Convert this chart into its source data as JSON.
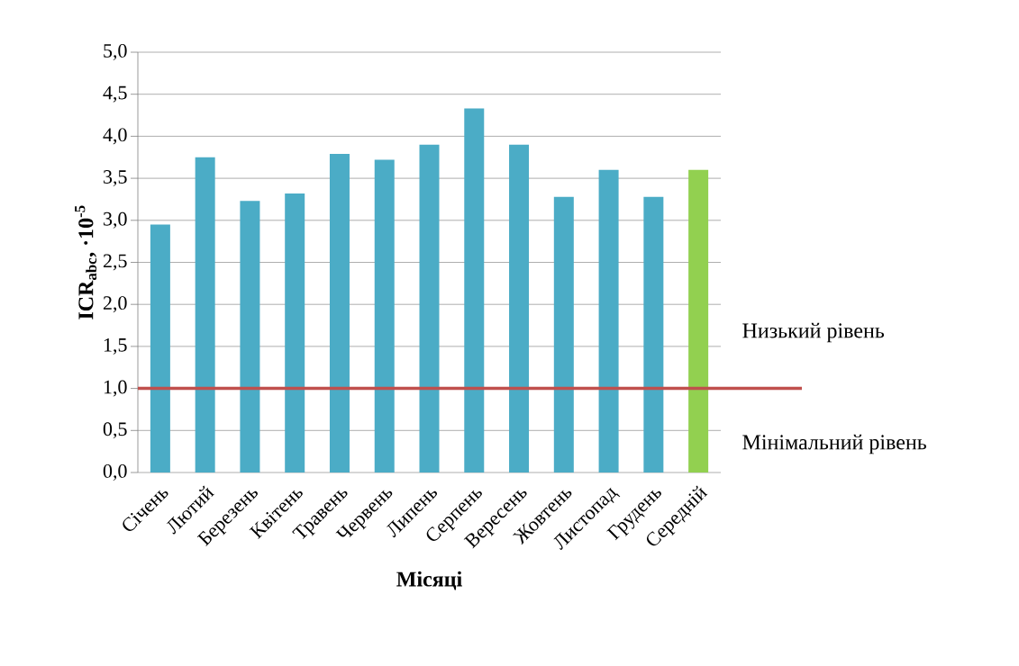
{
  "chart_data": {
    "type": "bar",
    "xlabel": "Місяці",
    "ylabel": "ICR$_{abc}$, ·10$^{-5}$",
    "categories": [
      "Січень",
      "Лютий",
      "Березень",
      "Квітень",
      "Травень",
      "Червень",
      "Липень",
      "Серпень",
      "Вересень",
      "Жовтень",
      "Листопад",
      "Грудень",
      "Середній"
    ],
    "values": [
      2.95,
      3.75,
      3.23,
      3.32,
      3.79,
      3.72,
      3.9,
      4.33,
      3.9,
      3.28,
      3.6,
      3.28,
      3.6
    ],
    "colors": [
      "#4bacc6",
      "#4bacc6",
      "#4bacc6",
      "#4bacc6",
      "#4bacc6",
      "#4bacc6",
      "#4bacc6",
      "#4bacc6",
      "#4bacc6",
      "#4bacc6",
      "#4bacc6",
      "#4bacc6",
      "#92d050"
    ],
    "ylim": [
      0,
      5
    ],
    "yticks": [
      {
        "value": 0,
        "label": "0,0"
      },
      {
        "value": 0.5,
        "label": "0,5"
      },
      {
        "value": 1,
        "label": "1,0"
      },
      {
        "value": 1.5,
        "label": "1,5"
      },
      {
        "value": 2,
        "label": "2,0"
      },
      {
        "value": 2.5,
        "label": "2,5"
      },
      {
        "value": 3,
        "label": "3,0"
      },
      {
        "value": 3.5,
        "label": "3,5"
      },
      {
        "value": 4,
        "label": "4,0"
      },
      {
        "value": 4.5,
        "label": "4,5"
      },
      {
        "value": 5,
        "label": "5,0"
      }
    ],
    "grid": "y",
    "ref_lines": [
      {
        "axis": "y",
        "value": 1,
        "color": "#c0504d"
      }
    ],
    "annotations": [
      "Низький рівень",
      "Мінімальний рівень"
    ]
  }
}
